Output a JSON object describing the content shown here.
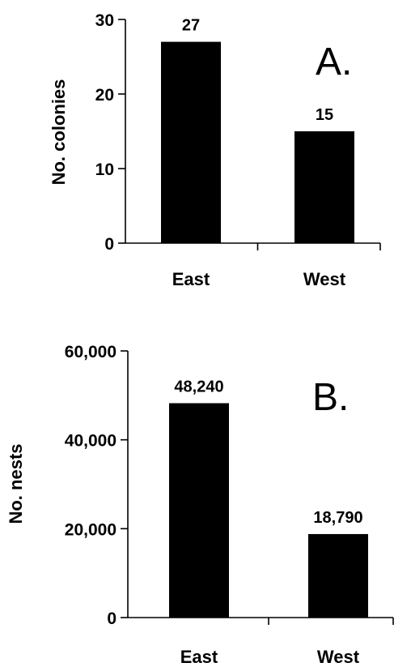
{
  "chart_data": [
    {
      "type": "bar",
      "panel_label": "A.",
      "categories": [
        "East",
        "West"
      ],
      "values": [
        27,
        15
      ],
      "value_labels": [
        "27",
        "15"
      ],
      "ylabel": "No. colonies",
      "xlabel": "",
      "ylim": [
        0,
        30
      ],
      "yticks": [
        0,
        10,
        20,
        30
      ],
      "ytick_labels": [
        "0",
        "10",
        "20",
        "30"
      ],
      "bar_color": "#000000",
      "grid": false
    },
    {
      "type": "bar",
      "panel_label": "B.",
      "categories": [
        "East",
        "West"
      ],
      "values": [
        48240,
        18790
      ],
      "value_labels": [
        "48,240",
        "18,790"
      ],
      "ylabel": "No. nests",
      "xlabel": "",
      "ylim": [
        0,
        60000
      ],
      "yticks": [
        0,
        20000,
        40000,
        60000
      ],
      "ytick_labels": [
        "0",
        "20,000",
        "40,000",
        "60,000"
      ],
      "bar_color": "#000000",
      "grid": false
    }
  ]
}
